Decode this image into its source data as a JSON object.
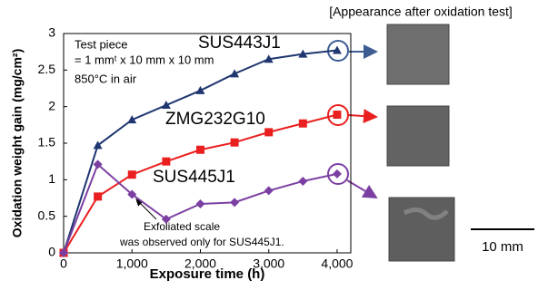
{
  "chart_data": {
    "type": "line",
    "y_label": "Oxidation weight gain (mg/cm²)",
    "x_label": "Exposure time  (h)",
    "x": [
      0,
      500,
      1000,
      1500,
      2000,
      2500,
      3000,
      3500,
      4000
    ],
    "series": [
      {
        "name": "SUS443J1",
        "color": "#1f3670",
        "label_color": "#3d5c92",
        "marker": "triangle",
        "values": [
          0,
          1.47,
          1.82,
          2.02,
          2.22,
          2.45,
          2.65,
          2.72,
          2.77
        ]
      },
      {
        "name": "ZMG232G10",
        "color": "#ea1f1f",
        "label_color": "#ea1f1f",
        "marker": "square",
        "values": [
          0,
          0.77,
          1.07,
          1.25,
          1.41,
          1.51,
          1.65,
          1.77,
          1.89
        ]
      },
      {
        "name": "SUS445J1",
        "color": "#7b3fa2",
        "label_color": "#8a55ad",
        "marker": "diamond",
        "values": [
          0,
          1.21,
          0.8,
          0.46,
          0.67,
          0.69,
          0.85,
          0.98,
          1.08
        ]
      }
    ],
    "xlim": [
      0,
      4200
    ],
    "xticks": [
      0,
      {
        "value": 1000,
        "label": "1,000"
      },
      {
        "value": 2000,
        "label": "2,000"
      },
      {
        "value": 3000,
        "label": "3,000"
      },
      {
        "value": 4000,
        "label": "4,000"
      }
    ],
    "ylim": [
      0,
      3
    ],
    "yticks": [
      0,
      0.5,
      1,
      1.5,
      2,
      2.5,
      3
    ],
    "annotations": [
      "Test piece",
      "= 1 mmᵗ x 10 mm x 10 mm",
      "850°C in air",
      "Exfoliated scale",
      "was observed only for SUS445J1."
    ],
    "photo_title": "[Appearance after oxidation test]",
    "scale_bar": "10 mm"
  }
}
